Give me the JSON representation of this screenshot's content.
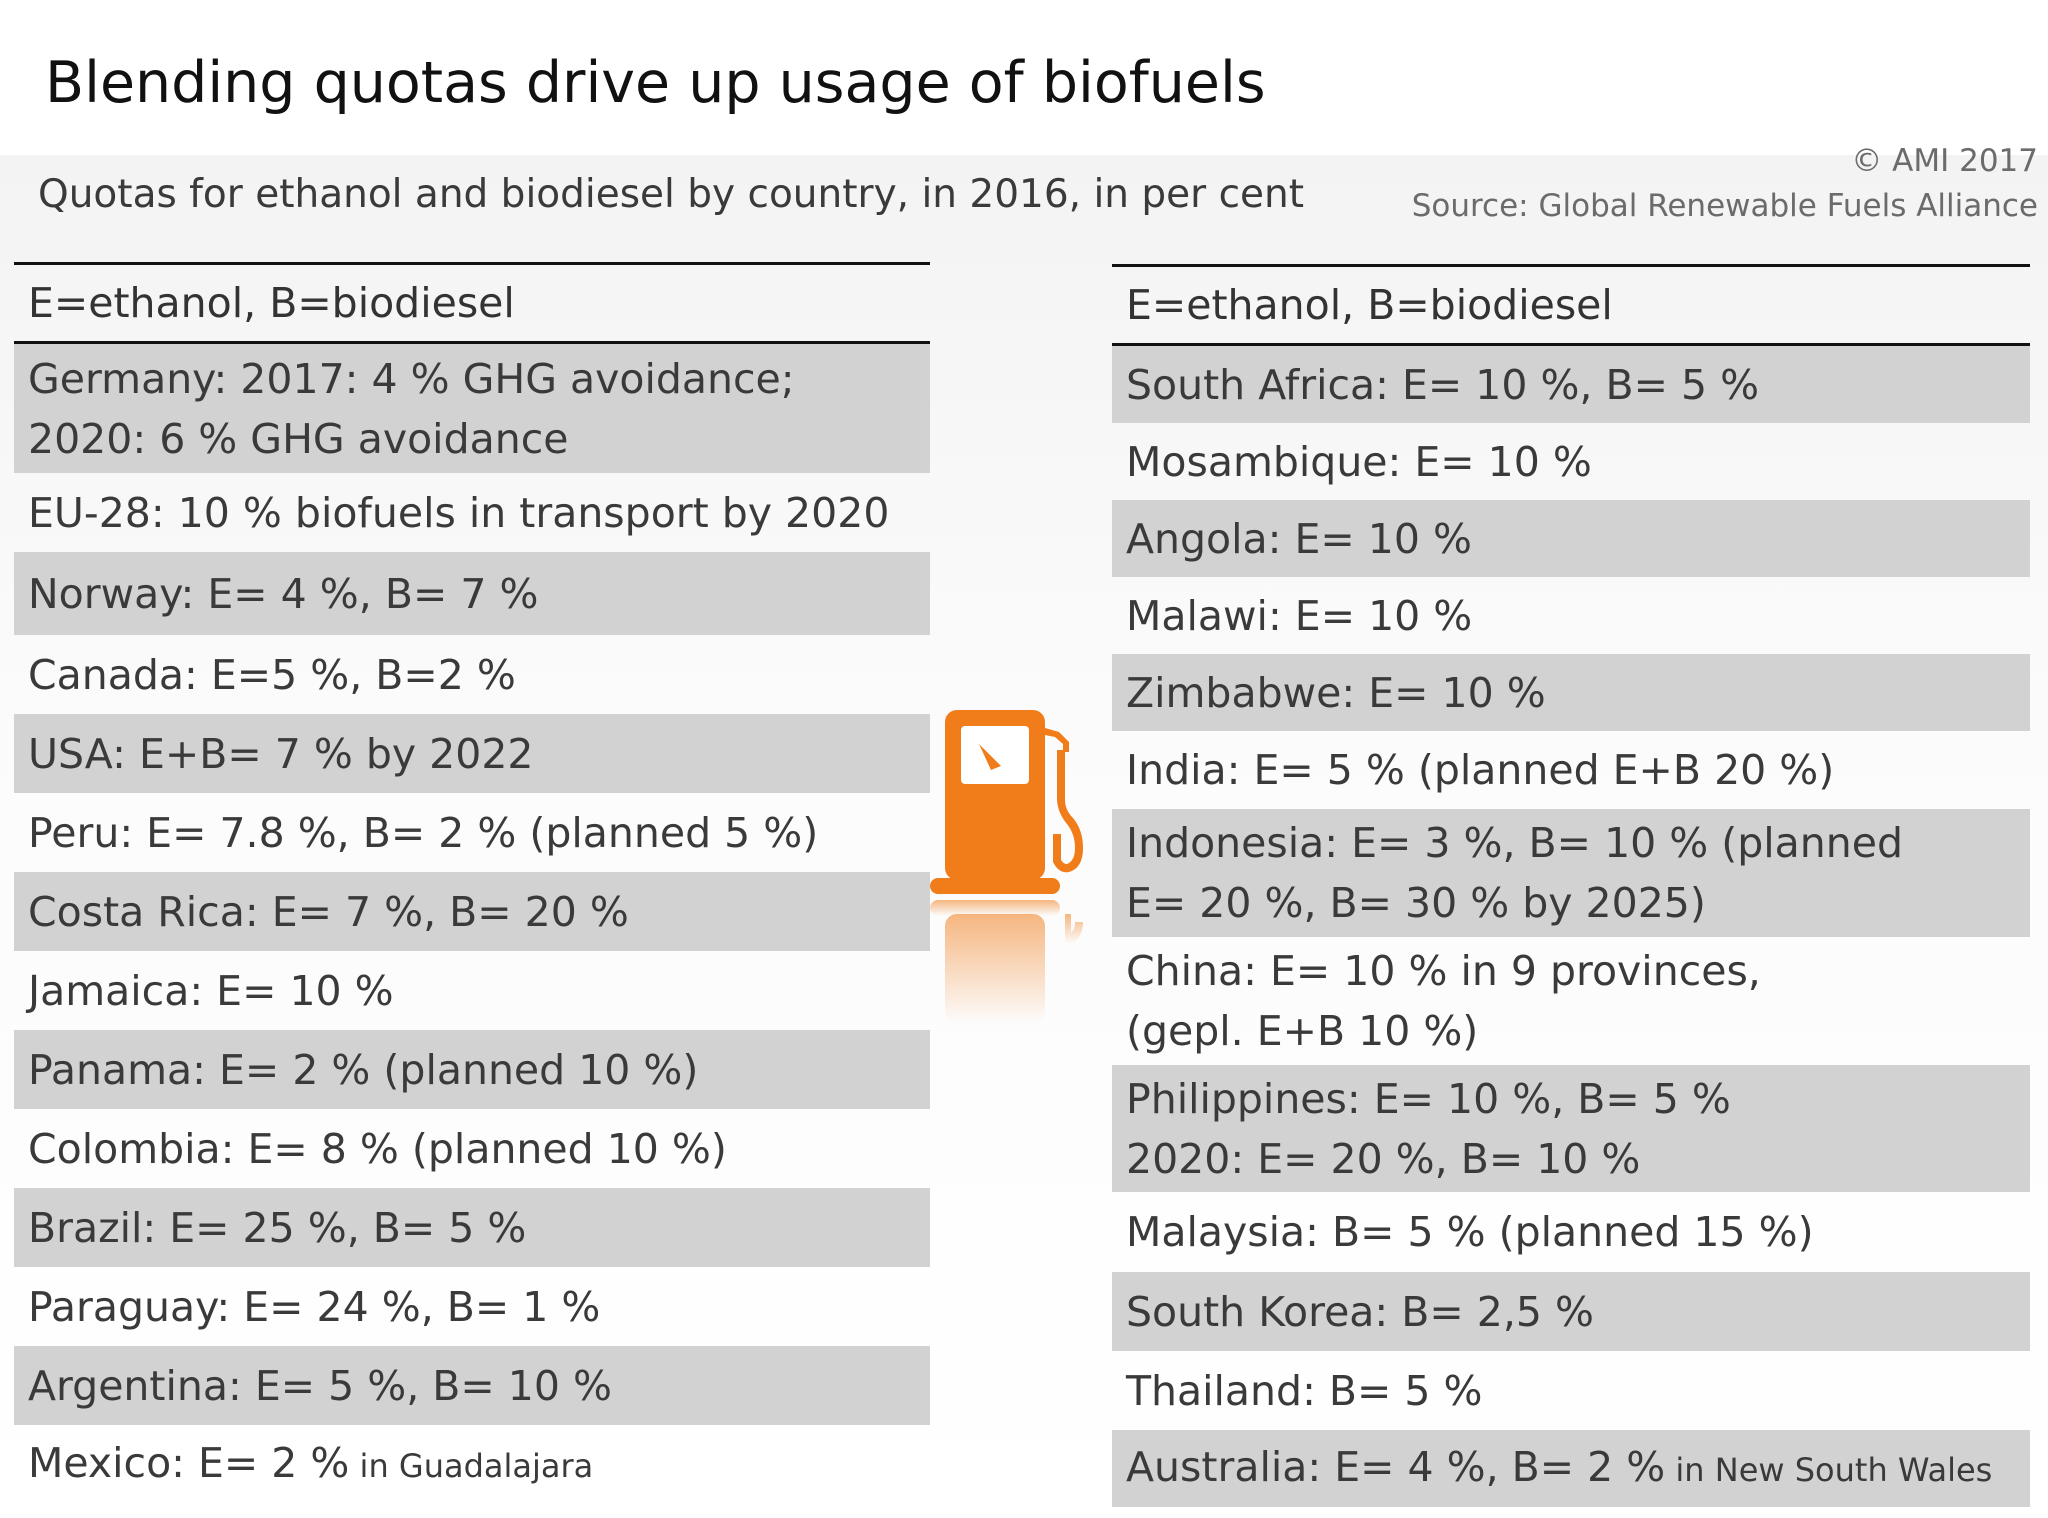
{
  "title": "Blending quotas drive up usage of biofuels",
  "subtitle": "Quotas for ethanol and biodiesel by country, in 2016, in per cent",
  "copyright": "© AMI 2017",
  "source": "Source: Global Renewable Fuels Alliance",
  "accent_color": "#f07c1a",
  "icon": "fuel-pump-icon",
  "chart_data": {
    "type": "table",
    "legend": "E=ethanol, B=biodiesel",
    "left_column": [
      {
        "lines": [
          "Germany: 2017: 4 % GHG avoidance;",
          "2020: 6 % GHG avoidance"
        ],
        "shaded": true
      },
      {
        "lines": [
          "EU-28: 10 % biofuels in transport by 2020"
        ],
        "shaded": false
      },
      {
        "lines": [
          "Norway: E= 4 %, B= 7 %"
        ],
        "shaded": true
      },
      {
        "lines": [
          "Canada: E=5 %, B=2 %"
        ],
        "shaded": false
      },
      {
        "lines": [
          "USA: E+B= 7 % by 2022"
        ],
        "shaded": true
      },
      {
        "lines": [
          "Peru: E= 7.8 %, B= 2 % (planned 5 %)"
        ],
        "shaded": false
      },
      {
        "lines": [
          "Costa Rica: E= 7 %, B= 20 %"
        ],
        "shaded": true
      },
      {
        "lines": [
          "Jamaica: E= 10 %"
        ],
        "shaded": false
      },
      {
        "lines": [
          "Panama: E= 2 % (planned 10 %)"
        ],
        "shaded": true
      },
      {
        "lines": [
          "Colombia: E= 8 % (planned 10 %)"
        ],
        "shaded": false
      },
      {
        "lines": [
          "Brazil: E= 25 %, B= 5 %"
        ],
        "shaded": true
      },
      {
        "lines": [
          "Paraguay: E= 24 %, B= 1 %"
        ],
        "shaded": false
      },
      {
        "lines": [
          "Argentina: E= 5 %, B= 10 %"
        ],
        "shaded": true
      },
      {
        "lines": [
          "Mexico: E= 2 %"
        ],
        "note": "in Guadalajara",
        "shaded": false
      }
    ],
    "right_column": [
      {
        "lines": [
          "South Africa: E= 10 %, B= 5 %"
        ],
        "shaded": true
      },
      {
        "lines": [
          "Mosambique: E= 10 %"
        ],
        "shaded": false
      },
      {
        "lines": [
          "Angola: E= 10 %"
        ],
        "shaded": true
      },
      {
        "lines": [
          "Malawi: E= 10 %"
        ],
        "shaded": false
      },
      {
        "lines": [
          "Zimbabwe: E= 10 %"
        ],
        "shaded": true
      },
      {
        "lines": [
          "India: E= 5 % (planned E+B 20 %)"
        ],
        "shaded": false
      },
      {
        "lines": [
          "Indonesia: E= 3 %, B= 10 % (planned",
          "E= 20 %, B= 30 % by 2025)"
        ],
        "shaded": true
      },
      {
        "lines": [
          "China: E= 10 % in 9 provinces,",
          "(gepl. E+B 10 %)"
        ],
        "shaded": false
      },
      {
        "lines": [
          "Philippines: E= 10 %, B= 5 %",
          "2020: E= 20 %, B= 10 %"
        ],
        "shaded": true
      },
      {
        "lines": [
          "Malaysia: B= 5 % (planned 15 %)"
        ],
        "shaded": false
      },
      {
        "lines": [
          "South Korea: B= 2,5 %"
        ],
        "shaded": true
      },
      {
        "lines": [
          "Thailand: B= 5 %"
        ],
        "shaded": false
      },
      {
        "lines": [
          "Australia: E= 4 %, B= 2 %"
        ],
        "note": "in New South Wales",
        "shaded": true
      }
    ]
  }
}
